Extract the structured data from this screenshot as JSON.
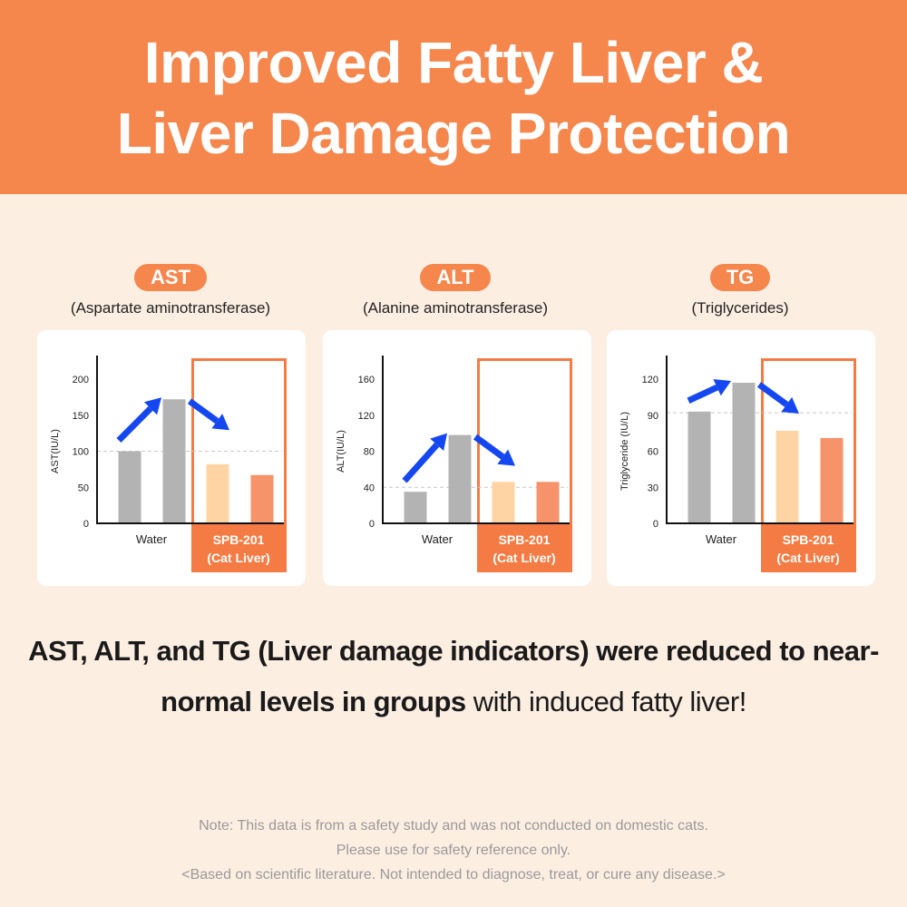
{
  "header": {
    "line1": "Improved Fatty Liver &",
    "line2": "Liver Damage Protection"
  },
  "colors": {
    "header_bg": "#f5864c",
    "page_bg": "#fdeee2",
    "water_bar": "#b3b3b3",
    "spb_bar_light": "#ffd4a4",
    "spb_bar": "#f6936a",
    "highlight_box": "#f47c44",
    "arrow": "#1547f0"
  },
  "chart_data": [
    {
      "type": "bar",
      "badge": "AST",
      "subtitle": "(Aspartate aminotransferase)",
      "ylabel": "AST(IU/L)",
      "ylim": [
        0,
        200
      ],
      "yticks": [
        0,
        50,
        100,
        150,
        200
      ],
      "reference_line": 100,
      "groups": [
        {
          "label": "Water",
          "values": [
            100,
            172
          ]
        },
        {
          "label_line1": "SPB-201",
          "label_line2": "(Cat Liver)",
          "values": [
            82,
            67
          ],
          "highlighted": true
        }
      ]
    },
    {
      "type": "bar",
      "badge": "ALT",
      "subtitle": "(Alanine aminotransferase)",
      "ylabel": "ALT(IU/L)",
      "ylim": [
        0,
        160
      ],
      "yticks": [
        0,
        40,
        80,
        120,
        160
      ],
      "reference_line": 40,
      "groups": [
        {
          "label": "Water",
          "values": [
            35,
            98
          ]
        },
        {
          "label_line1": "SPB-201",
          "label_line2": "(Cat Liver)",
          "values": [
            46,
            46
          ],
          "highlighted": true
        }
      ]
    },
    {
      "type": "bar",
      "badge": "TG",
      "subtitle": "(Triglycerides)",
      "ylabel": "Triglyceride (IU/L)",
      "ylim": [
        0,
        120
      ],
      "yticks": [
        0,
        30,
        60,
        90,
        120
      ],
      "reference_line": 92,
      "groups": [
        {
          "label": "Water",
          "values": [
            93,
            117
          ]
        },
        {
          "label_line1": "SPB-201",
          "label_line2": "(Cat Liver)",
          "values": [
            77,
            71
          ],
          "highlighted": true
        }
      ]
    }
  ],
  "summary": {
    "bold": "AST, ALT, and TG (Liver damage indicators) were reduced to near-normal levels in groups",
    "regular": " with induced fatty liver!"
  },
  "note": {
    "line1": "Note: This data is from a safety study and was not conducted on domestic cats.",
    "line2": "Please use for safety reference only.",
    "line3": "<Based on scientific literature. Not intended to diagnose, treat, or cure any disease.>"
  }
}
